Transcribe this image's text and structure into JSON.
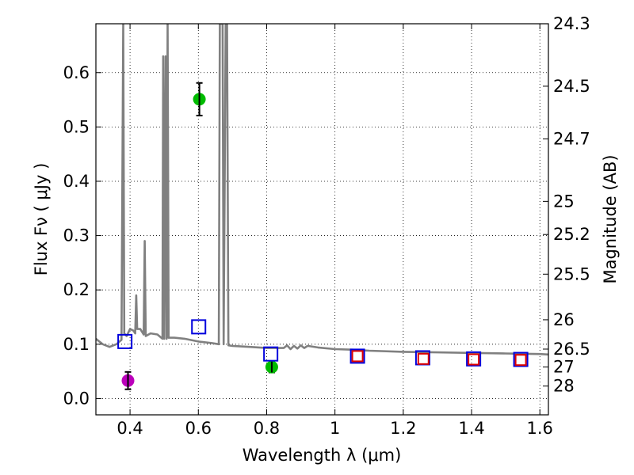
{
  "chart_data": {
    "type": "scatter",
    "title": "",
    "xlabel": "Wavelength  λ (μm)",
    "ylabel": "Flux  Fν  ( μJy )",
    "ylabel_right": "Magnitude (AB)",
    "xlim": [
      0.3,
      1.625
    ],
    "ylim": [
      -0.03,
      0.69
    ],
    "grid": true,
    "grid_style": "dotted",
    "x_ticks": [
      0.4,
      0.6,
      0.8,
      1.0,
      1.2,
      1.4,
      1.6
    ],
    "x_tick_labels": [
      "0.4",
      "0.6",
      "0.8",
      "1",
      "1.2",
      "1.4",
      "1.6"
    ],
    "y_ticks": [
      0.0,
      0.1,
      0.2,
      0.3,
      0.4,
      0.5,
      0.6
    ],
    "y_tick_labels": [
      "0.0",
      "0.1",
      "0.2",
      "0.3",
      "0.4",
      "0.5",
      "0.6"
    ],
    "right_ticks": [
      {
        "label": "24.3",
        "flux": 0.69
      },
      {
        "label": "24.5",
        "flux": 0.575
      },
      {
        "label": "24.7",
        "flux": 0.478
      },
      {
        "label": "25",
        "flux": 0.363
      },
      {
        "label": "25.2",
        "flux": 0.302
      },
      {
        "label": "25.5",
        "flux": 0.229
      },
      {
        "label": "26",
        "flux": 0.145
      },
      {
        "label": "26.5",
        "flux": 0.091
      },
      {
        "label": "27",
        "flux": 0.058
      },
      {
        "label": "28",
        "flux": 0.023
      }
    ],
    "colors": {
      "sed": "#808080",
      "green": "#00bb00",
      "magenta": "#bb00bb",
      "blue_box": "#0000dd",
      "red_box": "#dd0000",
      "errorbar": "#000000"
    },
    "series": [
      {
        "name": "model SED",
        "kind": "line",
        "points": [
          [
            0.3,
            0.11
          ],
          [
            0.32,
            0.1
          ],
          [
            0.34,
            0.095
          ],
          [
            0.36,
            0.1
          ],
          [
            0.375,
            0.108
          ],
          [
            0.38,
            0.69
          ],
          [
            0.383,
            0.12
          ],
          [
            0.39,
            0.115
          ],
          [
            0.4,
            0.128
          ],
          [
            0.41,
            0.125
          ],
          [
            0.415,
            0.12
          ],
          [
            0.418,
            0.19
          ],
          [
            0.421,
            0.128
          ],
          [
            0.43,
            0.128
          ],
          [
            0.44,
            0.118
          ],
          [
            0.443,
            0.29
          ],
          [
            0.446,
            0.115
          ],
          [
            0.46,
            0.12
          ],
          [
            0.48,
            0.118
          ],
          [
            0.495,
            0.11
          ],
          [
            0.497,
            0.63
          ],
          [
            0.5,
            0.11
          ],
          [
            0.504,
            0.63
          ],
          [
            0.507,
            0.11
          ],
          [
            0.51,
            0.69
          ],
          [
            0.513,
            0.112
          ],
          [
            0.53,
            0.112
          ],
          [
            0.56,
            0.11
          ],
          [
            0.6,
            0.105
          ],
          [
            0.64,
            0.102
          ],
          [
            0.66,
            0.1
          ],
          [
            0.663,
            0.69
          ],
          [
            0.671,
            0.69
          ],
          [
            0.674,
            0.1
          ],
          [
            0.68,
            0.69
          ],
          [
            0.684,
            0.69
          ],
          [
            0.688,
            0.098
          ],
          [
            0.7,
            0.097
          ],
          [
            0.75,
            0.095
          ],
          [
            0.8,
            0.093
          ],
          [
            0.85,
            0.093
          ],
          [
            0.86,
            0.098
          ],
          [
            0.87,
            0.091
          ],
          [
            0.88,
            0.097
          ],
          [
            0.89,
            0.092
          ],
          [
            0.9,
            0.098
          ],
          [
            0.91,
            0.093
          ],
          [
            0.92,
            0.097
          ],
          [
            0.95,
            0.094
          ],
          [
            1.0,
            0.091
          ],
          [
            1.05,
            0.09
          ],
          [
            1.1,
            0.088
          ],
          [
            1.2,
            0.086
          ],
          [
            1.3,
            0.085
          ],
          [
            1.4,
            0.084
          ],
          [
            1.5,
            0.083
          ],
          [
            1.6,
            0.082
          ],
          [
            1.625,
            0.081
          ]
        ]
      },
      {
        "name": "green points",
        "kind": "circle",
        "points": [
          {
            "x": 0.603,
            "y": 0.551,
            "yerr": 0.03
          },
          {
            "x": 0.815,
            "y": 0.058,
            "yerr": 0.01
          }
        ]
      },
      {
        "name": "magenta point",
        "kind": "circle",
        "points": [
          {
            "x": 0.394,
            "y": 0.033,
            "yerr": 0.016
          }
        ]
      },
      {
        "name": "blue squares",
        "kind": "square",
        "points": [
          {
            "x": 0.385,
            "y": 0.105
          },
          {
            "x": 0.601,
            "y": 0.132
          },
          {
            "x": 0.812,
            "y": 0.082
          },
          {
            "x": 1.066,
            "y": 0.078
          },
          {
            "x": 1.257,
            "y": 0.075
          },
          {
            "x": 1.406,
            "y": 0.073
          },
          {
            "x": 1.544,
            "y": 0.072
          }
        ]
      },
      {
        "name": "red squares",
        "kind": "square",
        "points": [
          {
            "x": 1.066,
            "y": 0.078
          },
          {
            "x": 1.259,
            "y": 0.073
          },
          {
            "x": 1.406,
            "y": 0.072
          },
          {
            "x": 1.544,
            "y": 0.071
          }
        ]
      }
    ]
  }
}
